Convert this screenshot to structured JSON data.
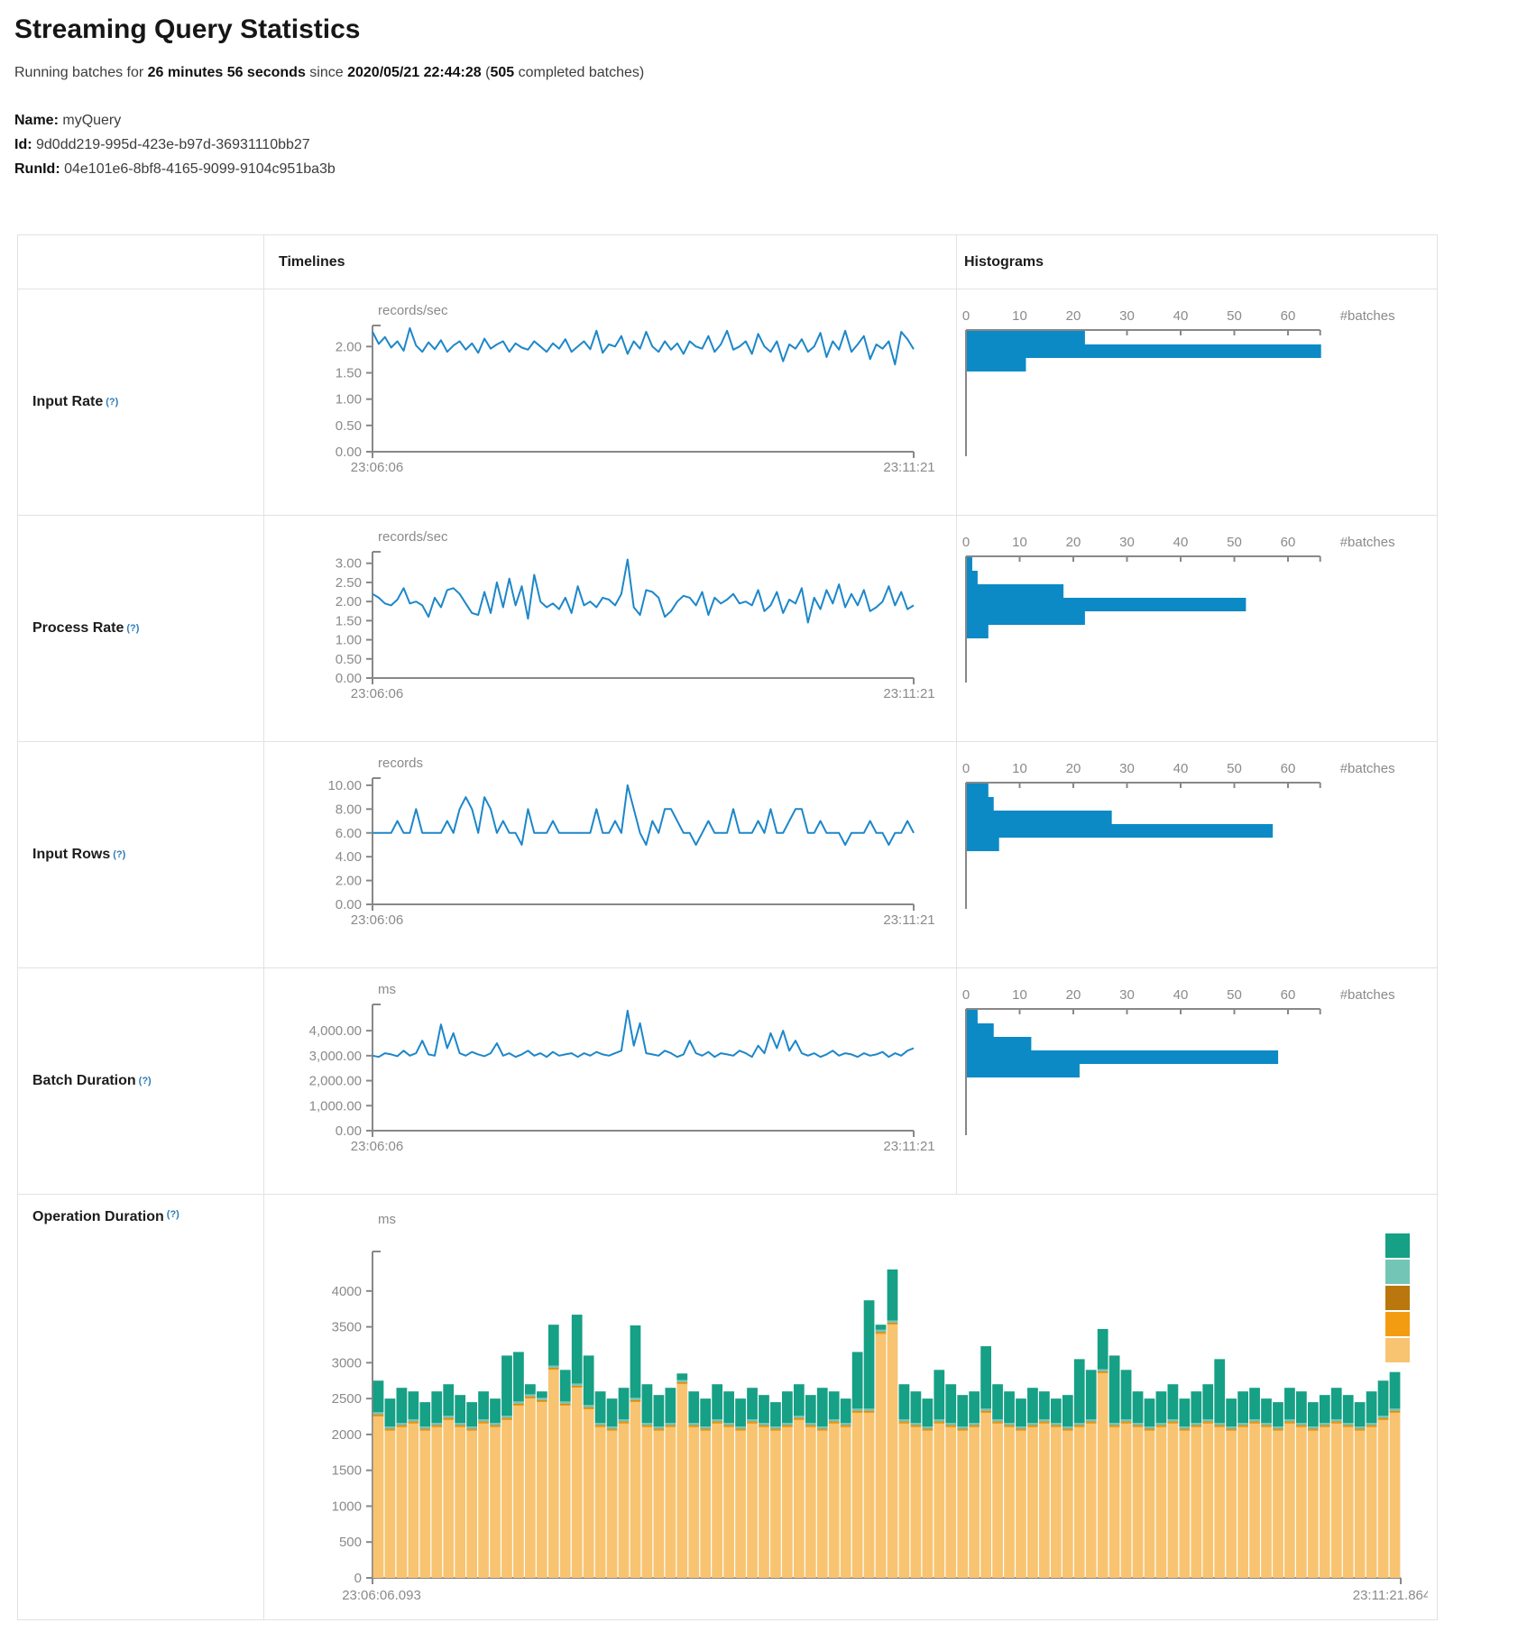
{
  "header": {
    "title": "Streaming Query Statistics",
    "running": [
      "Running batches for ",
      "26 minutes 56 seconds",
      " since ",
      "2020/05/21 22:44:28",
      " (",
      "505",
      " completed batches)"
    ],
    "name_label": "Name:",
    "name_value": "myQuery",
    "id_label": "Id:",
    "id_value": "9d0dd219-995d-423e-b97d-36931110bb27",
    "runid_label": "RunId:",
    "runid_value": "04e101e6-8bf8-4165-9099-9104c951ba3b"
  },
  "table": {
    "col_timelines": "Timelines",
    "col_histograms": "Histograms"
  },
  "colors": {
    "line": "#1d87c9",
    "hist_bar": "#0b8ac6",
    "axis": "#888888",
    "tick_text": "#8a8a8a"
  },
  "legend": {
    "colors": [
      "#16a085",
      "#73c6b6",
      "#b9770e",
      "#f39c12",
      "#f8c471"
    ]
  },
  "chart_data": [
    {
      "label": "Input Rate",
      "help": "(?)",
      "timeline": {
        "type": "line",
        "unit": "records/sec",
        "x_start": "23:06:06",
        "x_end": "23:11:21",
        "ymax": 2.4,
        "yticks": [
          [
            2,
            "2.00"
          ],
          [
            1.5,
            "1.50"
          ],
          [
            1,
            "1.00"
          ],
          [
            0.5,
            "0.50"
          ],
          [
            0,
            "0.00"
          ]
        ],
        "values": [
          2.28,
          2.05,
          2.18,
          1.98,
          2.1,
          1.92,
          2.35,
          2.02,
          1.9,
          2.08,
          1.95,
          2.12,
          1.9,
          2.02,
          2.1,
          1.94,
          2.06,
          1.88,
          2.15,
          1.96,
          2.04,
          2.1,
          1.9,
          2.06,
          1.98,
          1.94,
          2.1,
          2.0,
          1.9,
          2.06,
          1.96,
          2.14,
          1.9,
          2.0,
          2.1,
          1.95,
          2.3,
          1.88,
          2.04,
          2.0,
          2.2,
          1.86,
          2.1,
          1.96,
          2.28,
          2.0,
          1.9,
          2.1,
          1.94,
          2.06,
          1.86,
          2.1,
          2.0,
          1.96,
          2.2,
          1.9,
          2.04,
          2.3,
          1.94,
          2.0,
          2.1,
          1.86,
          2.24,
          2.0,
          1.9,
          2.1,
          1.72,
          2.04,
          1.96,
          2.14,
          1.9,
          2.0,
          2.26,
          1.8,
          2.1,
          1.94,
          2.3,
          1.9,
          2.04,
          2.2,
          1.76,
          2.04,
          1.96,
          2.1,
          1.66,
          2.28,
          2.14,
          1.95
        ]
      },
      "histogram": {
        "type": "bar",
        "orientation": "horizontal",
        "xlabel": "#batches",
        "xticks": [
          0,
          10,
          20,
          30,
          40,
          50,
          60
        ],
        "xmax": 66,
        "values": [
          22,
          66,
          11
        ]
      }
    },
    {
      "label": "Process Rate",
      "help": "(?)",
      "timeline": {
        "type": "line",
        "unit": "records/sec",
        "x_start": "23:06:06",
        "x_end": "23:11:21",
        "ymax": 3.3,
        "yticks": [
          [
            3,
            "3.00"
          ],
          [
            2.5,
            "2.50"
          ],
          [
            2,
            "2.00"
          ],
          [
            1.5,
            "1.50"
          ],
          [
            1,
            "1.00"
          ],
          [
            0.5,
            "0.50"
          ],
          [
            0,
            "0.00"
          ]
        ],
        "values": [
          2.2,
          2.1,
          1.95,
          1.9,
          2.05,
          2.35,
          1.95,
          2.0,
          1.9,
          1.6,
          2.1,
          1.85,
          2.3,
          2.35,
          2.2,
          1.95,
          1.7,
          1.65,
          2.25,
          1.7,
          2.5,
          1.85,
          2.6,
          1.9,
          2.4,
          1.55,
          2.7,
          2.0,
          1.85,
          1.95,
          1.8,
          2.1,
          1.7,
          2.4,
          1.9,
          2.0,
          1.85,
          2.1,
          2.05,
          1.9,
          2.2,
          3.1,
          1.85,
          1.65,
          2.3,
          2.25,
          2.1,
          1.6,
          1.75,
          2.0,
          2.15,
          2.1,
          1.9,
          2.25,
          1.65,
          2.1,
          1.95,
          2.05,
          2.2,
          1.95,
          2.0,
          1.9,
          2.3,
          1.75,
          1.9,
          2.25,
          1.7,
          2.05,
          1.95,
          2.35,
          1.45,
          2.1,
          1.8,
          2.3,
          1.95,
          2.45,
          1.85,
          2.2,
          1.9,
          2.3,
          1.75,
          1.85,
          2.0,
          2.4,
          1.9,
          2.25,
          1.8,
          1.9
        ]
      },
      "histogram": {
        "type": "bar",
        "orientation": "horizontal",
        "xlabel": "#batches",
        "xticks": [
          0,
          10,
          20,
          30,
          40,
          50,
          60
        ],
        "xmax": 66,
        "values": [
          1,
          2,
          18,
          52,
          22,
          4
        ]
      }
    },
    {
      "label": "Input Rows",
      "help": "(?)",
      "timeline": {
        "type": "line",
        "unit": "records",
        "x_start": "23:06:06",
        "x_end": "23:11:21",
        "ymax": 10.6,
        "yticks": [
          [
            10,
            "10.00"
          ],
          [
            8,
            "8.00"
          ],
          [
            6,
            "6.00"
          ],
          [
            4,
            "4.00"
          ],
          [
            2,
            "2.00"
          ],
          [
            0,
            "0.00"
          ]
        ],
        "values": [
          6,
          6,
          6,
          6,
          7,
          6,
          6,
          8,
          6,
          6,
          6,
          6,
          7,
          6,
          8,
          9,
          8,
          6,
          9,
          8,
          6,
          7,
          6,
          6,
          5,
          8,
          6,
          6,
          6,
          7,
          6,
          6,
          6,
          6,
          6,
          6,
          8,
          6,
          6,
          7,
          6,
          10,
          8,
          6,
          5,
          7,
          6,
          8,
          8,
          7,
          6,
          6,
          5,
          6,
          7,
          6,
          6,
          6,
          8,
          6,
          6,
          6,
          7,
          6,
          8,
          6,
          6,
          7,
          8,
          8,
          6,
          6,
          7,
          6,
          6,
          6,
          5,
          6,
          6,
          6,
          7,
          6,
          6,
          5,
          6,
          6,
          7,
          6
        ]
      },
      "histogram": {
        "type": "bar",
        "orientation": "horizontal",
        "xlabel": "#batches",
        "xticks": [
          0,
          10,
          20,
          30,
          40,
          50,
          60
        ],
        "xmax": 66,
        "values": [
          4,
          5,
          27,
          57,
          6
        ]
      }
    },
    {
      "label": "Batch Duration",
      "help": "(?)",
      "timeline": {
        "type": "line",
        "unit": "ms",
        "x_start": "23:06:06",
        "x_end": "23:11:21",
        "ymax": 5050,
        "yticks": [
          [
            4000,
            "4,000.00"
          ],
          [
            3000,
            "3,000.00"
          ],
          [
            2000,
            "2,000.00"
          ],
          [
            1000,
            "1,000.00"
          ],
          [
            0,
            "0.00"
          ]
        ],
        "values": [
          3000,
          2950,
          3100,
          3050,
          2980,
          3200,
          3000,
          3100,
          3600,
          3050,
          3000,
          4250,
          3300,
          3900,
          3100,
          3000,
          3150,
          3050,
          2980,
          3100,
          3500,
          3000,
          3100,
          2950,
          3050,
          3200,
          3000,
          3100,
          2950,
          3150,
          3000,
          3050,
          3100,
          2950,
          3100,
          3000,
          3150,
          3050,
          3000,
          3100,
          3200,
          4800,
          3400,
          4300,
          3100,
          3050,
          3000,
          3200,
          3100,
          2950,
          3050,
          3600,
          3100,
          3000,
          3150,
          2950,
          3100,
          3050,
          3000,
          3200,
          3100,
          2950,
          3400,
          3100,
          3900,
          3300,
          4000,
          3200,
          3600,
          3100,
          3000,
          3100,
          2950,
          3050,
          3200,
          3000,
          3100,
          3050,
          2950,
          3100,
          3000,
          3050,
          3150,
          2950,
          3100,
          3000,
          3200,
          3300
        ]
      },
      "histogram": {
        "type": "bar",
        "orientation": "horizontal",
        "xlabel": "#batches",
        "xticks": [
          0,
          10,
          20,
          30,
          40,
          50,
          60
        ],
        "xmax": 66,
        "values": [
          2,
          5,
          12,
          58,
          21
        ]
      }
    },
    {
      "label": "Operation Duration",
      "help": "(?)",
      "timeline": {
        "type": "stacked-bar",
        "unit": "ms",
        "x_start": "23:06:06.093",
        "x_end": "23:11:21.864",
        "ymax": 4400,
        "yticks": [
          [
            4000,
            "4000"
          ],
          [
            3500,
            "3500"
          ],
          [
            3000,
            "3000"
          ],
          [
            2500,
            "2500"
          ],
          [
            2000,
            "2000"
          ],
          [
            1500,
            "1500"
          ],
          [
            1000,
            "1000"
          ],
          [
            500,
            "500"
          ],
          [
            0,
            "0"
          ]
        ],
        "series": [
          {
            "color": "#f8c471",
            "values": [
              2250,
              2050,
              2100,
              2150,
              2050,
              2100,
              2200,
              2100,
              2050,
              2150,
              2100,
              2200,
              2400,
              2500,
              2450,
              2900,
              2400,
              2650,
              2350,
              2100,
              2050,
              2150,
              2450,
              2100,
              2050,
              2100,
              2700,
              2100,
              2050,
              2150,
              2100,
              2050,
              2150,
              2100,
              2050,
              2100,
              2200,
              2100,
              2050,
              2150,
              2100,
              2300,
              2300,
              3400,
              3530,
              2150,
              2100,
              2050,
              2150,
              2100,
              2050,
              2100,
              2300,
              2150,
              2100,
              2050,
              2100,
              2150,
              2100,
              2050,
              2100,
              2150,
              2850,
              2100,
              2150,
              2100,
              2050,
              2100,
              2150,
              2050,
              2100,
              2150,
              2100,
              2050,
              2100,
              2150,
              2100,
              2050,
              2150,
              2100,
              2050,
              2100,
              2150,
              2100,
              2050,
              2100,
              2200,
              2300
            ]
          },
          {
            "color": "#f39c12",
            "value": 20
          },
          {
            "color": "#b9770e",
            "value": 10
          },
          {
            "color": "#73c6b6",
            "value": 30
          },
          {
            "color": "#16a085",
            "values": [
              440,
              390,
              490,
              390,
              340,
              440,
              440,
              390,
              340,
              390,
              340,
              840,
              690,
              140,
              90,
              570,
              440,
              960,
              690,
              440,
              390,
              440,
              1010,
              540,
              440,
              490,
              90,
              440,
              390,
              490,
              440,
              390,
              440,
              390,
              340,
              440,
              440,
              390,
              540,
              390,
              340,
              790,
              1510,
              70,
              710,
              490,
              440,
              390,
              690,
              540,
              440,
              440,
              870,
              490,
              440,
              390,
              490,
              390,
              340,
              440,
              890,
              690,
              560,
              940,
              690,
              440,
              390,
              440,
              490,
              390,
              440,
              490,
              890,
              390,
              440,
              440,
              340,
              340,
              440,
              440,
              340,
              390,
              440,
              390,
              340,
              440,
              490,
              510
            ]
          }
        ]
      }
    }
  ]
}
